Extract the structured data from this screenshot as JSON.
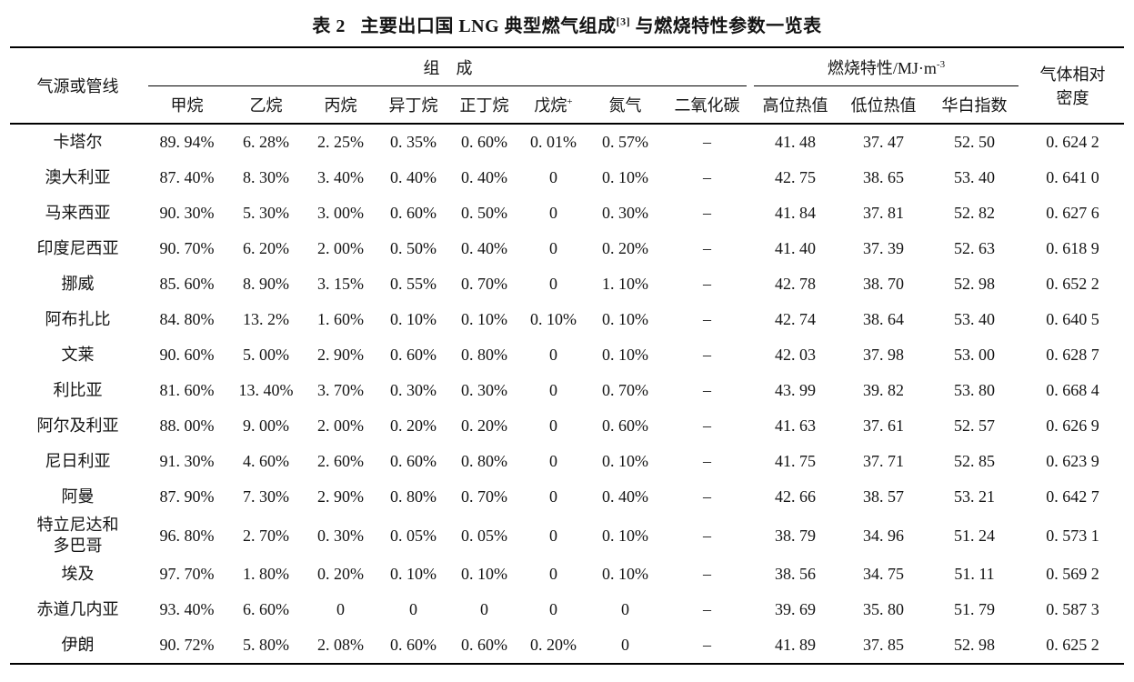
{
  "title": {
    "main": "表 2   主要出口国 LNG 典型燃气组成",
    "citation_sup": "[3]",
    "suffix": " 与燃烧特性参数一览表"
  },
  "table": {
    "col_source": "气源或管线",
    "group_composition": "组　成",
    "group_combustion_main": "燃烧特性/MJ·m",
    "group_combustion_sup": "-3",
    "col_density_line1": "气体相对",
    "col_density_line2": "密度",
    "sub_headers": [
      "甲烷",
      "乙烷",
      "丙烷",
      "异丁烷",
      "正丁烷",
      "戊烷",
      "氮气",
      "二氧化碳",
      "高位热值",
      "低位热值",
      "华白指数"
    ],
    "pentane_sup": "+",
    "rows": [
      {
        "source": "卡塔尔",
        "values": [
          "89. 94%",
          "6. 28%",
          "2. 25%",
          "0. 35%",
          "0. 60%",
          "0. 01%",
          "0. 57%",
          "–",
          "41. 48",
          "37. 47",
          "52. 50",
          "0. 624 2"
        ]
      },
      {
        "source": "澳大利亚",
        "values": [
          "87. 40%",
          "8. 30%",
          "3. 40%",
          "0. 40%",
          "0. 40%",
          "0",
          "0. 10%",
          "–",
          "42. 75",
          "38. 65",
          "53. 40",
          "0. 641 0"
        ]
      },
      {
        "source": "马来西亚",
        "values": [
          "90. 30%",
          "5. 30%",
          "3. 00%",
          "0. 60%",
          "0. 50%",
          "0",
          "0. 30%",
          "–",
          "41. 84",
          "37. 81",
          "52. 82",
          "0. 627 6"
        ]
      },
      {
        "source": "印度尼西亚",
        "values": [
          "90. 70%",
          "6. 20%",
          "2. 00%",
          "0. 50%",
          "0. 40%",
          "0",
          "0. 20%",
          "–",
          "41. 40",
          "37. 39",
          "52. 63",
          "0. 618 9"
        ]
      },
      {
        "source": "挪威",
        "values": [
          "85. 60%",
          "8. 90%",
          "3. 15%",
          "0. 55%",
          "0. 70%",
          "0",
          "1. 10%",
          "–",
          "42. 78",
          "38. 70",
          "52. 98",
          "0. 652 2"
        ]
      },
      {
        "source": "阿布扎比",
        "values": [
          "84. 80%",
          "13. 2%",
          "1. 60%",
          "0. 10%",
          "0. 10%",
          "0. 10%",
          "0. 10%",
          "–",
          "42. 74",
          "38. 64",
          "53. 40",
          "0. 640 5"
        ]
      },
      {
        "source": "文莱",
        "values": [
          "90. 60%",
          "5. 00%",
          "2. 90%",
          "0. 60%",
          "0. 80%",
          "0",
          "0. 10%",
          "–",
          "42. 03",
          "37. 98",
          "53. 00",
          "0. 628 7"
        ]
      },
      {
        "source": "利比亚",
        "values": [
          "81. 60%",
          "13. 40%",
          "3. 70%",
          "0. 30%",
          "0. 30%",
          "0",
          "0. 70%",
          "–",
          "43. 99",
          "39. 82",
          "53. 80",
          "0. 668 4"
        ]
      },
      {
        "source": "阿尔及利亚",
        "values": [
          "88. 00%",
          "9. 00%",
          "2. 00%",
          "0. 20%",
          "0. 20%",
          "0",
          "0. 60%",
          "–",
          "41. 63",
          "37. 61",
          "52. 57",
          "0. 626 9"
        ]
      },
      {
        "source": "尼日利亚",
        "values": [
          "91. 30%",
          "4. 60%",
          "2. 60%",
          "0. 60%",
          "0. 80%",
          "0",
          "0. 10%",
          "–",
          "41. 75",
          "37. 71",
          "52. 85",
          "0. 623 9"
        ]
      },
      {
        "source": "阿曼",
        "values": [
          "87. 90%",
          "7. 30%",
          "2. 90%",
          "0. 80%",
          "0. 70%",
          "0",
          "0. 40%",
          "–",
          "42. 66",
          "38. 57",
          "53. 21",
          "0. 642 7"
        ]
      },
      {
        "source": "特立尼达和\n多巴哥",
        "values": [
          "96. 80%",
          "2. 70%",
          "0. 30%",
          "0. 05%",
          "0. 05%",
          "0",
          "0. 10%",
          "–",
          "38. 79",
          "34. 96",
          "51. 24",
          "0. 573 1"
        ]
      },
      {
        "source": "埃及",
        "values": [
          "97. 70%",
          "1. 80%",
          "0. 20%",
          "0. 10%",
          "0. 10%",
          "0",
          "0. 10%",
          "–",
          "38. 56",
          "34. 75",
          "51. 11",
          "0. 569 2"
        ]
      },
      {
        "source": "赤道几内亚",
        "values": [
          "93. 40%",
          "6. 60%",
          "0",
          "0",
          "0",
          "0",
          "0",
          "–",
          "39. 69",
          "35. 80",
          "51. 79",
          "0. 587 3"
        ]
      },
      {
        "source": "伊朗",
        "values": [
          "90. 72%",
          "5. 80%",
          "2. 08%",
          "0. 60%",
          "0. 60%",
          "0. 20%",
          "0",
          "–",
          "41. 89",
          "37. 85",
          "52. 98",
          "0. 625 2"
        ]
      }
    ]
  }
}
